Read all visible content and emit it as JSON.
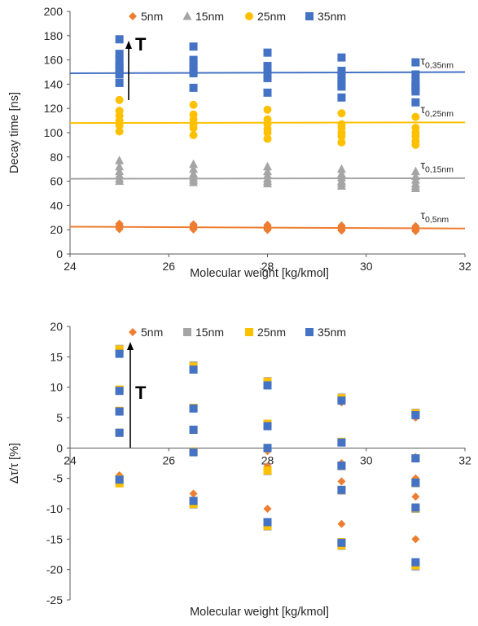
{
  "colors": {
    "5nm": "#ED7D31",
    "15nm": "#A5A5A5",
    "25nm": "#FFC000",
    "35nm": "#4472C4",
    "axis": "#595959",
    "text": "#262626"
  },
  "chart_data": [
    {
      "type": "scatter",
      "xlabel": "Molecular weight [kg/kmol]",
      "ylabel": "Decay time [ns]",
      "xlim": [
        24,
        32
      ],
      "ylim": [
        0,
        200
      ],
      "xticks": [
        "24",
        "26",
        "28",
        "30",
        "32"
      ],
      "yticks": [
        "0",
        "20",
        "40",
        "60",
        "80",
        "100",
        "120",
        "140",
        "160",
        "180",
        "200"
      ],
      "grid": false,
      "legend_position": "top",
      "arrow_label": "T",
      "series": [
        {
          "name": "5nm",
          "marker": "diamond",
          "x": [
            25,
            25,
            25,
            25,
            25,
            25,
            26.5,
            26.5,
            26.5,
            26.5,
            26.5,
            26.5,
            28,
            28,
            28,
            28,
            28,
            28,
            29.5,
            29.5,
            29.5,
            29.5,
            29.5,
            29.5,
            31,
            31,
            31,
            31,
            31,
            31
          ],
          "y": [
            25,
            24,
            23,
            22,
            21.5,
            20.5,
            24.5,
            23.5,
            22.5,
            21.5,
            20.8,
            20.2,
            24,
            23,
            22,
            21,
            20.5,
            19.8,
            23.5,
            22.5,
            21.5,
            20.8,
            20,
            19.2,
            23,
            22,
            21,
            20,
            19.5,
            18.8
          ]
        },
        {
          "name": "15nm",
          "marker": "triangle",
          "x": [
            25,
            25,
            25,
            25,
            25,
            25,
            26.5,
            26.5,
            26.5,
            26.5,
            26.5,
            26.5,
            28,
            28,
            28,
            28,
            28,
            28,
            29.5,
            29.5,
            29.5,
            29.5,
            29.5,
            29.5,
            31,
            31,
            31,
            31,
            31,
            31
          ],
          "y": [
            77,
            72,
            68,
            65,
            62,
            60,
            74,
            70,
            66,
            63,
            61,
            59,
            72,
            68,
            65,
            62,
            60,
            58,
            70,
            66,
            63,
            60,
            58,
            56,
            68,
            64,
            61,
            58,
            56,
            54
          ]
        },
        {
          "name": "25nm",
          "marker": "circle",
          "x": [
            25,
            25,
            25,
            25,
            25,
            25,
            26.5,
            26.5,
            26.5,
            26.5,
            26.5,
            26.5,
            28,
            28,
            28,
            28,
            28,
            28,
            29.5,
            29.5,
            29.5,
            29.5,
            29.5,
            29.5,
            31,
            31,
            31,
            31,
            31,
            31
          ],
          "y": [
            127,
            118,
            114,
            110,
            106,
            101,
            123,
            115,
            111,
            107,
            104,
            98,
            119,
            111,
            107,
            103,
            100,
            95,
            116,
            107,
            104,
            100,
            97,
            92,
            113,
            104,
            100,
            97,
            93,
            90
          ]
        },
        {
          "name": "35nm",
          "marker": "square",
          "x": [
            25,
            25,
            25,
            25,
            25,
            25,
            25,
            25,
            25,
            26.5,
            26.5,
            26.5,
            26.5,
            26.5,
            26.5,
            26.5,
            28,
            28,
            28,
            28,
            28,
            28,
            28,
            29.5,
            29.5,
            29.5,
            29.5,
            29.5,
            29.5,
            29.5,
            31,
            31,
            31,
            31,
            31,
            31,
            31
          ],
          "y": [
            177,
            165,
            160,
            156,
            154,
            152,
            150,
            148,
            141,
            171,
            160,
            157,
            154,
            151,
            149,
            137,
            166,
            155,
            151,
            149,
            147,
            145,
            133,
            162,
            151,
            146,
            143,
            140,
            138,
            129,
            158,
            148,
            142,
            139,
            137,
            134,
            125
          ]
        }
      ],
      "fit_lines": [
        {
          "series": "5nm",
          "x": [
            24,
            32
          ],
          "y": [
            22.5,
            21
          ]
        },
        {
          "series": "15nm",
          "x": [
            24,
            32
          ],
          "y": [
            62,
            62.5
          ]
        },
        {
          "series": "25nm",
          "x": [
            24,
            32
          ],
          "y": [
            108,
            108.5
          ]
        },
        {
          "series": "35nm",
          "x": [
            24,
            32
          ],
          "y": [
            149,
            150
          ]
        }
      ],
      "annotations": [
        {
          "symbol": "τ",
          "sub": "0,35nm",
          "x": 31.1,
          "y": 156
        },
        {
          "symbol": "τ",
          "sub": "0,25nm",
          "x": 31.1,
          "y": 116
        },
        {
          "symbol": "τ",
          "sub": "0,15nm",
          "x": 31.1,
          "y": 70
        },
        {
          "symbol": "τ",
          "sub": "0,5nm",
          "x": 31.1,
          "y": 29
        }
      ]
    },
    {
      "type": "scatter",
      "xlabel": "Molecular weight [kg/kmol]",
      "ylabel": "Δτ/τ [%]",
      "xlim": [
        24,
        32
      ],
      "ylim": [
        -25,
        20
      ],
      "xticks": [
        "24",
        "26",
        "28",
        "30",
        "32"
      ],
      "yticks": [
        "-25",
        "-20",
        "-15",
        "-10",
        "-5",
        "0",
        "5",
        "10",
        "15",
        "20"
      ],
      "grid": false,
      "legend_position": "top",
      "arrow_label": "T",
      "series": [
        {
          "name": "5nm",
          "marker": "diamond",
          "x": [
            25,
            25,
            25,
            25,
            25,
            25,
            26.5,
            26.5,
            26.5,
            26.5,
            26.5,
            26.5,
            28,
            28,
            28,
            28,
            28,
            28,
            29.5,
            29.5,
            29.5,
            29.5,
            29.5,
            29.5,
            31,
            31,
            31,
            31,
            31,
            31
          ],
          "y": [
            16,
            9.5,
            6,
            2.5,
            -4.5,
            -5.5,
            13.5,
            6.5,
            3,
            -0.5,
            -7.5,
            -9,
            10.5,
            4,
            -0.5,
            -3,
            -10,
            -12.5,
            7.5,
            1,
            -2.5,
            -5.5,
            -12.5,
            -15.5,
            5,
            -1.5,
            -5,
            -8,
            -15,
            -19
          ]
        },
        {
          "name": "15nm",
          "marker": "square",
          "x": [
            25,
            25,
            25,
            25,
            25,
            25,
            26.5,
            26.5,
            26.5,
            26.5,
            26.5,
            26.5,
            28,
            28,
            28,
            28,
            28,
            28,
            29.5,
            29.5,
            29.5,
            29.5,
            29.5,
            29.5,
            31,
            31,
            31,
            31,
            31
          ],
          "y": [
            16.3,
            9.6,
            6.1,
            2.5,
            -5.2,
            -5.8,
            13.6,
            6.6,
            3,
            -0.6,
            -8.9,
            -9.3,
            11,
            4,
            0,
            -3.8,
            -12.4,
            -12.9,
            8.3,
            1,
            -3,
            -7,
            -15.6,
            -16.1,
            5.8,
            -1.7,
            -5.8,
            -10,
            -19.5
          ]
        },
        {
          "name": "25nm",
          "marker": "square",
          "x": [
            25,
            25,
            25,
            25,
            25,
            25,
            26.5,
            26.5,
            26.5,
            26.5,
            26.5,
            26.5,
            28,
            28,
            28,
            28,
            28,
            28,
            29.5,
            29.5,
            29.5,
            29.5,
            29.5,
            29.5,
            31,
            31,
            31,
            31,
            31
          ],
          "y": [
            16.2,
            9.6,
            6.1,
            2.5,
            -5.1,
            -5.8,
            13.4,
            6.6,
            3,
            -0.6,
            -8.8,
            -9.2,
            10.9,
            4,
            0,
            -3.7,
            -12.3,
            -12.8,
            8.2,
            1,
            -2.9,
            -6.9,
            -15.5,
            -16,
            5.7,
            -1.7,
            -5.7,
            -9.9,
            -19.3
          ]
        },
        {
          "name": "35nm",
          "marker": "square",
          "x": [
            25,
            25,
            25,
            25,
            25,
            26.5,
            26.5,
            26.5,
            26.5,
            26.5,
            28,
            28,
            28,
            28,
            29.5,
            29.5,
            29.5,
            29.5,
            29.5,
            31,
            31,
            31,
            31,
            31
          ],
          "y": [
            15.5,
            9.4,
            6,
            2.5,
            -5.2,
            12.9,
            6.5,
            3,
            -0.7,
            -8.7,
            10.3,
            3.6,
            0,
            -12.2,
            7.8,
            0.9,
            -2.9,
            -6.9,
            -15.6,
            5.4,
            -1.7,
            -5.7,
            -9.8,
            -18.8
          ]
        }
      ]
    }
  ]
}
